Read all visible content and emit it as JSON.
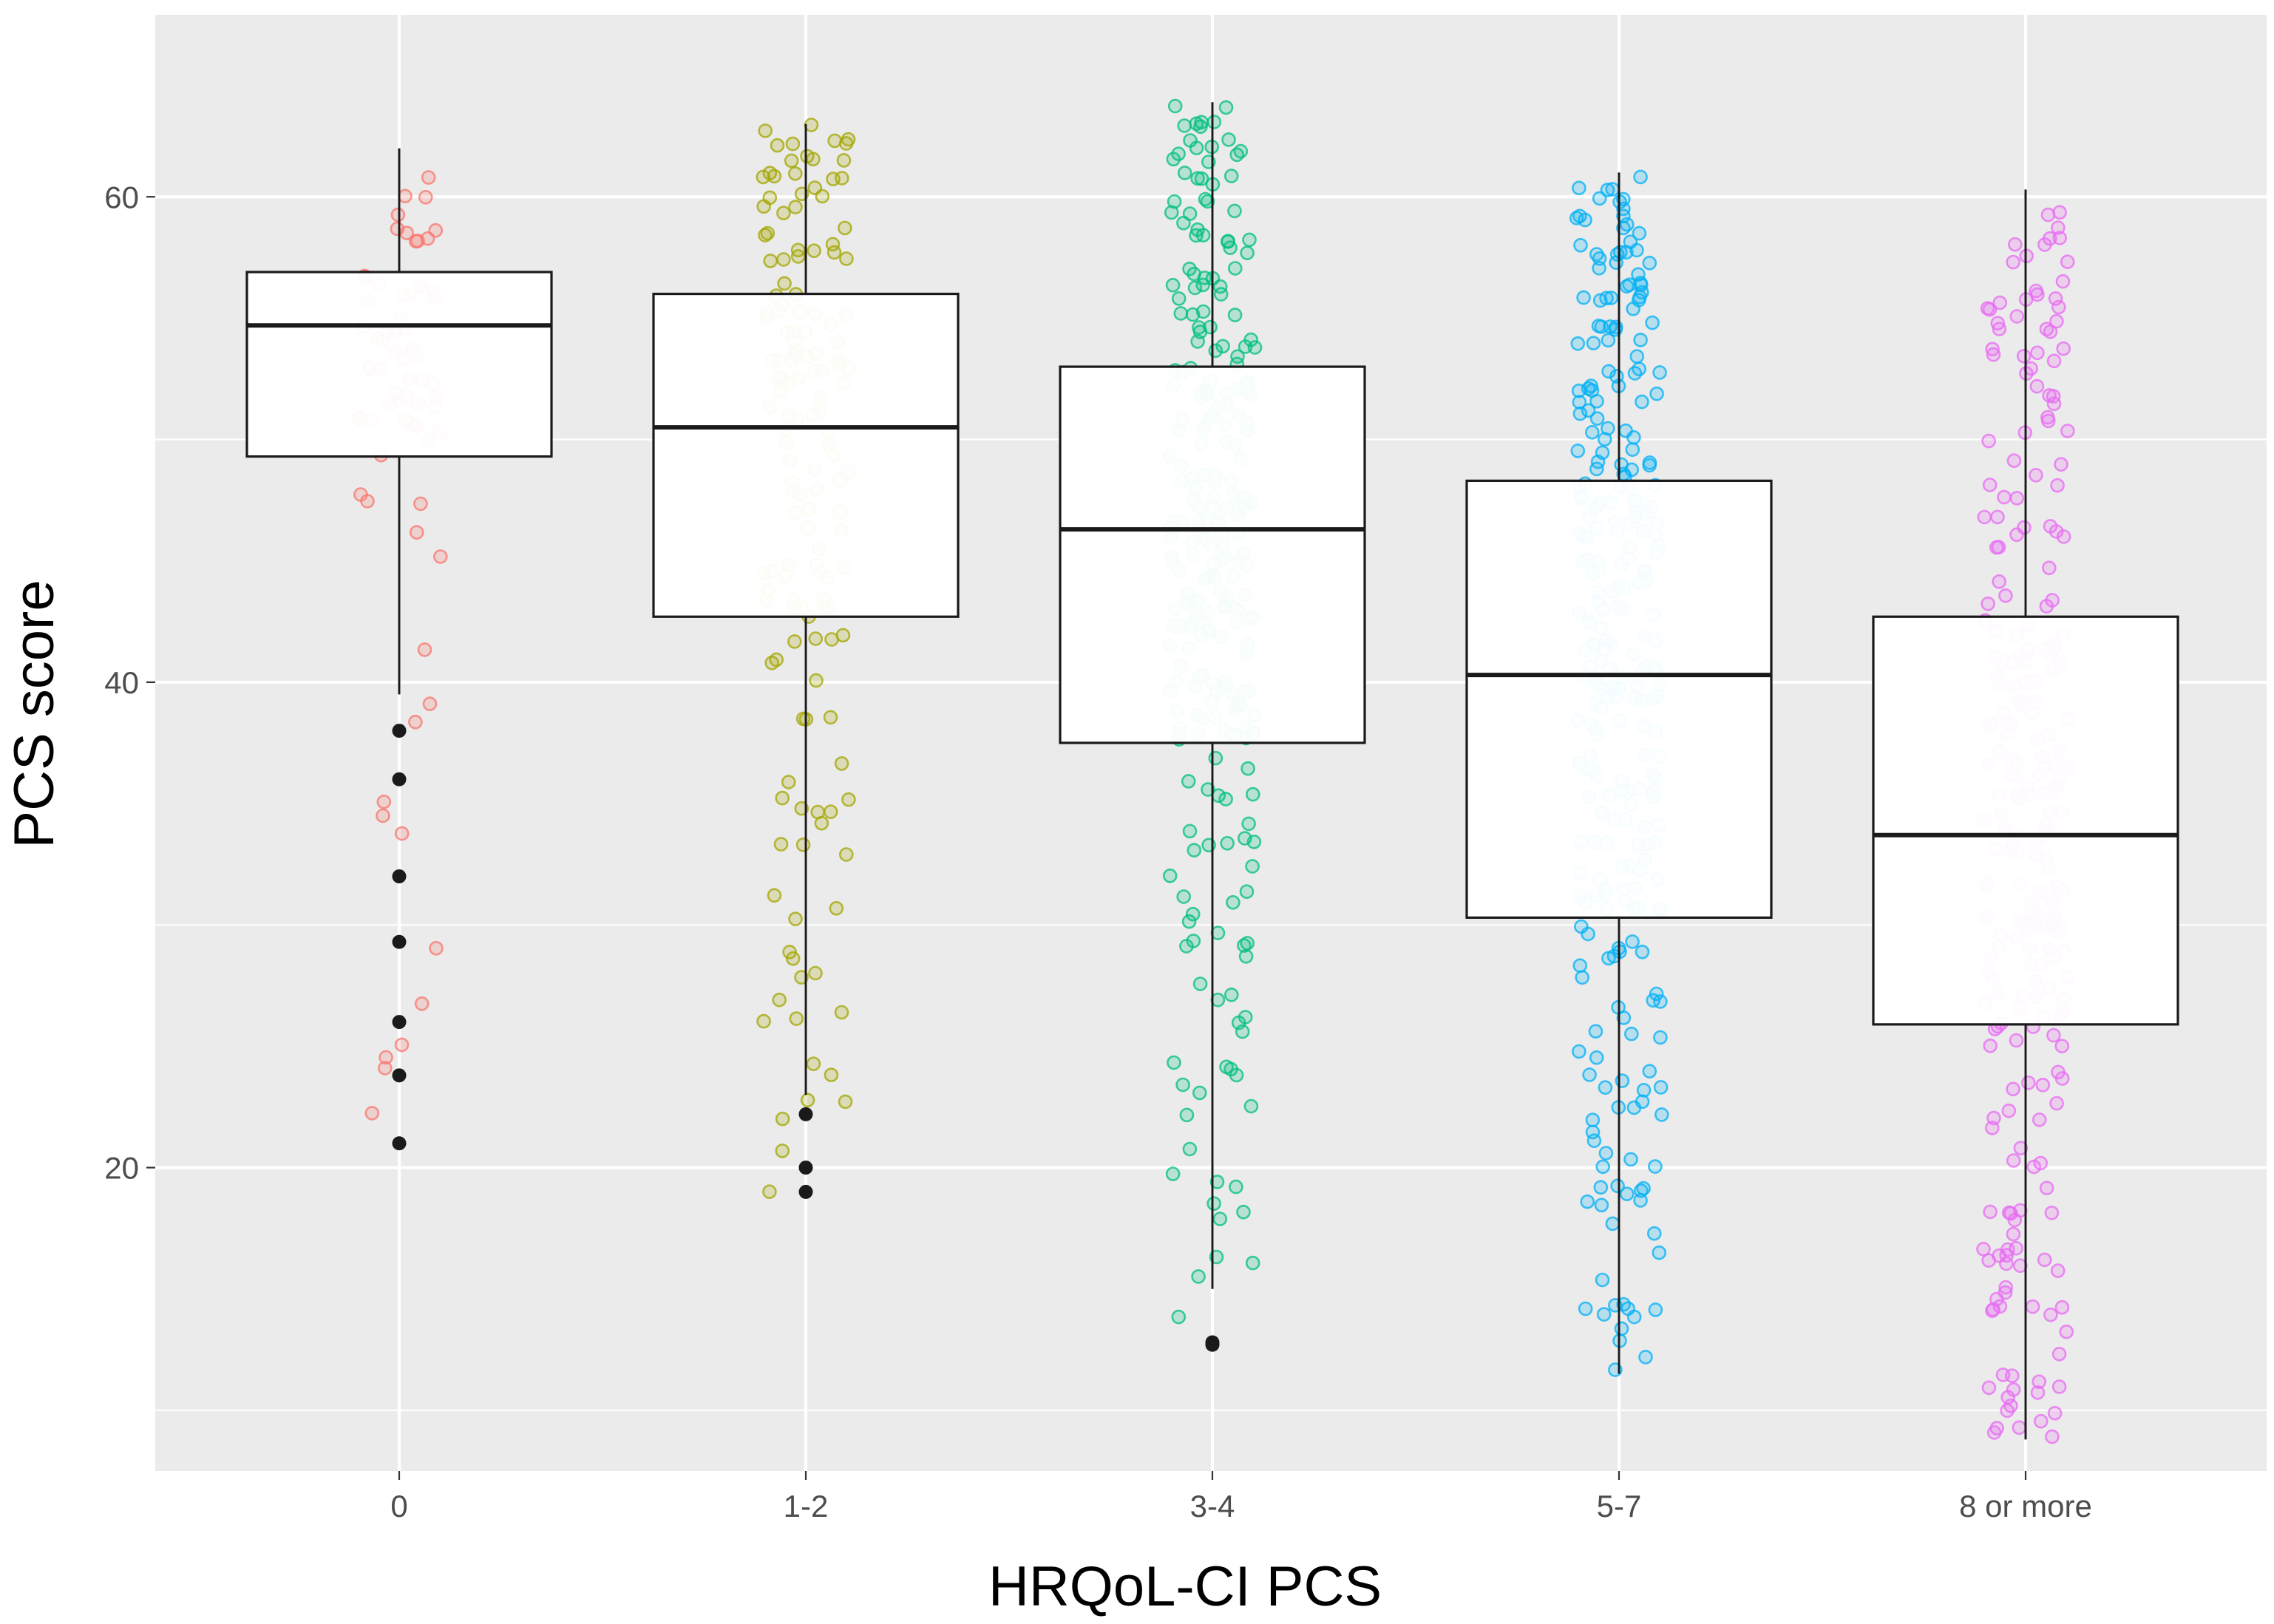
{
  "chart_data": {
    "type": "box",
    "title": "",
    "xlabel": "HRQoL-CI PCS",
    "ylabel": "PCS score",
    "ylim": [
      7.5,
      67.5
    ],
    "yticks": [
      20,
      40,
      60
    ],
    "yticks_minor": [
      10,
      30,
      50
    ],
    "grid": true,
    "categories": [
      "0",
      "1-2",
      "3-4",
      "5-7",
      "8 or more"
    ],
    "colors": [
      "#f8766d",
      "#a3a500",
      "#00bf7d",
      "#00b0f6",
      "#e76bf3"
    ],
    "boxes": [
      {
        "category": "0",
        "whisker_low": 39.5,
        "q1": 49.3,
        "median": 54.7,
        "q3": 56.9,
        "whisker_high": 62.0,
        "outliers": [
          38.0,
          36.0,
          32.0,
          29.3,
          26.0,
          23.8,
          21.0
        ]
      },
      {
        "category": "1-2",
        "whisker_low": 23.0,
        "q1": 42.7,
        "median": 50.5,
        "q3": 56.0,
        "whisker_high": 63.0,
        "outliers": [
          22.2,
          20.0,
          19.0
        ]
      },
      {
        "category": "3-4",
        "whisker_low": 15.0,
        "q1": 37.5,
        "median": 46.3,
        "q3": 53.0,
        "whisker_high": 63.9,
        "outliers": [
          12.8,
          12.7
        ]
      },
      {
        "category": "5-7",
        "whisker_low": 11.5,
        "q1": 30.3,
        "median": 40.3,
        "q3": 48.3,
        "whisker_high": 61.0,
        "outliers": []
      },
      {
        "category": "8 or more",
        "whisker_low": 8.8,
        "q1": 25.9,
        "median": 33.7,
        "q3": 42.7,
        "whisker_high": 60.3,
        "outliers": []
      }
    ],
    "jitter_counts": [
      70,
      150,
      260,
      290,
      260
    ]
  }
}
